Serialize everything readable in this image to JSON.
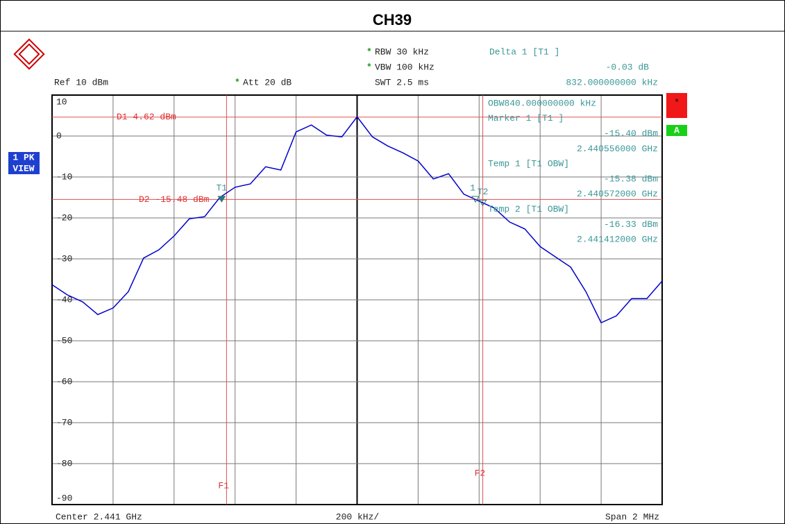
{
  "chart_data": {
    "type": "line",
    "title": "CH39",
    "x": [
      2.44,
      2.44005,
      2.4401,
      2.44015,
      2.4402,
      2.44025,
      2.4403,
      2.44035,
      2.4404,
      2.44045,
      2.4405,
      2.44055,
      2.4406,
      2.44065,
      2.4407,
      2.44075,
      2.4408,
      2.44085,
      2.4409,
      2.44095,
      2.441,
      2.44105,
      2.4411,
      2.44115,
      2.4412,
      2.44125,
      2.4413,
      2.44135,
      2.4414,
      2.44145,
      2.4415,
      2.44155,
      2.4416,
      2.44165,
      2.4417,
      2.44175,
      2.4418,
      2.44185,
      2.4419,
      2.44195,
      2.442
    ],
    "values": [
      -36.3,
      -38.8,
      -40.5,
      -43.6,
      -42,
      -38,
      -29.8,
      -27.8,
      -24.4,
      -20.2,
      -19.7,
      -15,
      -12.5,
      -11.7,
      -7.5,
      -8.3,
      1,
      2.7,
      0.2,
      -0.2,
      4.7,
      -0.2,
      -2.4,
      -4.1,
      -6.1,
      -10.5,
      -9.2,
      -14.2,
      -15.9,
      -17.6,
      -21,
      -22.7,
      -27,
      -29.5,
      -32,
      -38,
      -45.6,
      -43.9,
      -39.7,
      -39.7,
      -35.4
    ],
    "color": "#0000cc",
    "xlim": [
      2.44,
      2.442
    ],
    "xticks": [
      2.44,
      2.4402,
      2.4404,
      2.4406,
      2.4408,
      2.441,
      2.4412,
      2.4414,
      2.4416,
      2.4418,
      2.442
    ],
    "ylim": [
      -90,
      10
    ],
    "yticks": [
      10,
      0,
      -10,
      -20,
      -30,
      -40,
      -50,
      -60,
      -70,
      -80,
      -90
    ],
    "grid": true,
    "hlines": [
      {
        "label": "D1 4.62 dBm",
        "value": 4.62
      },
      {
        "label": "D2 -15.48 dBm",
        "value": -15.48
      }
    ],
    "vlines": [
      {
        "label": "F1",
        "x": 2.440572
      },
      {
        "label": "F2",
        "x": 2.441412
      }
    ],
    "markers": [
      {
        "label": "T1",
        "x": 2.440556,
        "y": -15.4
      },
      {
        "label": "T2",
        "x": 2.441412,
        "y": -16.33
      },
      {
        "label": "1",
        "x": 2.441388,
        "y": -15.43
      }
    ],
    "header": [
      {
        "star": "*",
        "text": "RBW 30 kHz"
      },
      {
        "star": "*",
        "text": "VBW 100 kHz"
      },
      {
        "text": "SWT 2.5 ms"
      },
      {
        "text": "Delta 1 [T1 ]"
      },
      {
        "text": "-0.03 dB"
      },
      {
        "text": "832.000000000 kHz"
      },
      {
        "text": "Ref 10 dBm"
      },
      {
        "star": "*",
        "text": "Att 20 dB"
      }
    ],
    "readout": [
      "OBW840.000000000 kHz",
      "Marker 1 [T1 ]",
      "-15.40 dBm",
      "2.440556000 GHz",
      "Temp 1 [T1 OBW]",
      "-15.38 dBm",
      "2.440572000 GHz",
      "Temp 2 [T1 OBW]",
      "-16.33 dBm",
      "2.441412000 GHz"
    ],
    "footer": [
      "Center 2.441 GHz",
      "200 kHz/",
      "Span 2 MHz"
    ],
    "side_left": [
      "1 PK",
      "VIEW"
    ],
    "side_right": [
      "*",
      "A"
    ]
  }
}
